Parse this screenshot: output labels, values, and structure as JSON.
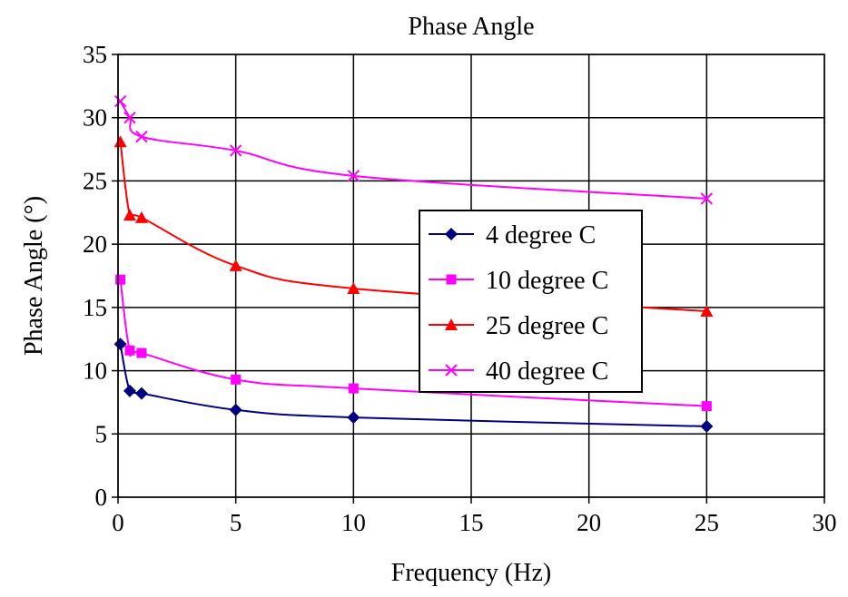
{
  "chart_data": {
    "type": "line",
    "title": "Phase Angle",
    "xlabel": "Frequency (Hz)",
    "ylabel": "Phase Angle (°)",
    "xlim": [
      0,
      30
    ],
    "ylim": [
      0,
      35
    ],
    "x_ticks": [
      "0",
      "5",
      "10",
      "15",
      "20",
      "25",
      "30"
    ],
    "y_ticks": [
      "0",
      "5",
      "10",
      "15",
      "20",
      "25",
      "30",
      "35"
    ],
    "grid": true,
    "legend_position": "center-right",
    "x": [
      0.1,
      0.5,
      1,
      5,
      10,
      25
    ],
    "series": [
      {
        "name": "4 degree C",
        "marker": "diamond",
        "color": "#000080",
        "values": [
          12.1,
          8.4,
          8.2,
          6.9,
          6.3,
          5.6
        ]
      },
      {
        "name": "10 degree C",
        "marker": "square",
        "color": "#ff00ff",
        "values": [
          17.2,
          11.6,
          11.4,
          9.3,
          8.6,
          7.2
        ]
      },
      {
        "name": "25 degree C",
        "marker": "triangle",
        "color": "#ff0000",
        "values": [
          28.1,
          22.3,
          22.1,
          18.3,
          16.5,
          14.7
        ]
      },
      {
        "name": "40 degree C",
        "marker": "x",
        "color": "#ff00ff",
        "values": [
          31.3,
          30.0,
          28.5,
          27.4,
          25.4,
          23.6
        ]
      }
    ]
  }
}
